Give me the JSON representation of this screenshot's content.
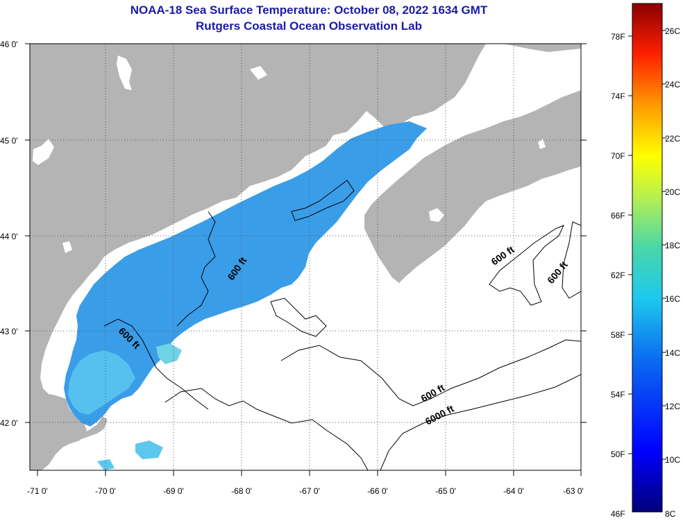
{
  "title": {
    "line1": "NOAA-18 Sea Surface Temperature:  October 08, 2022 1634 GMT",
    "line2": "Rutgers Coastal Ocean Observation Lab"
  },
  "map": {
    "lat_labels": [
      "46 0'",
      "45 0'",
      "44 0'",
      "43 0'",
      "42 0'"
    ],
    "lon_labels": [
      "-71 0'",
      "-70 0'",
      "-69 0'",
      "-68 0'",
      "-67 0'",
      "-66 0'",
      "-65 0'",
      "-64 0'",
      "-63 0'"
    ],
    "contour_labels": [
      "600 ft",
      "600 ft",
      "600 ft",
      "600 ft",
      "600 ft",
      "6000 ft"
    ],
    "colors": {
      "land": "#b4b4b4",
      "sea_no_data": "#ffffff",
      "sst_main": "#3a9de8",
      "sst_light": "#5cc8ee"
    }
  },
  "colorbar": {
    "f_labels": [
      "78F",
      "74F",
      "70F",
      "66F",
      "62F",
      "58F",
      "54F",
      "50F",
      "46F"
    ],
    "c_labels": [
      "26C",
      "24C",
      "22C",
      "20C",
      "18C",
      "16C",
      "14C",
      "12C",
      "10C",
      "8C"
    ]
  }
}
